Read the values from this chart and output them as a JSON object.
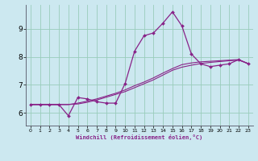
{
  "xlabel": "Windchill (Refroidissement éolien,°C)",
  "ylabel": "",
  "background_color": "#cce8f0",
  "grid_color": "#99ccbb",
  "line_color": "#882288",
  "spine_color": "#555566",
  "x_ticks": [
    0,
    1,
    2,
    3,
    4,
    5,
    6,
    7,
    8,
    9,
    10,
    11,
    12,
    13,
    14,
    15,
    16,
    17,
    18,
    19,
    20,
    21,
    22,
    23
  ],
  "y_ticks": [
    6,
    7,
    8,
    9
  ],
  "ylim": [
    5.55,
    9.85
  ],
  "xlim": [
    -0.5,
    23.5
  ],
  "line1_x": [
    0,
    1,
    2,
    3,
    4,
    5,
    6,
    7,
    8,
    9,
    10,
    11,
    12,
    13,
    14,
    15,
    16,
    17,
    18,
    19,
    20,
    21,
    22,
    23
  ],
  "line1_y": [
    6.3,
    6.3,
    6.3,
    6.3,
    5.9,
    6.55,
    6.5,
    6.4,
    6.35,
    6.35,
    7.05,
    8.2,
    8.75,
    8.85,
    9.2,
    9.6,
    9.1,
    8.1,
    7.75,
    7.65,
    7.7,
    7.75,
    7.9,
    7.75
  ],
  "line2_x": [
    0,
    1,
    2,
    3,
    4,
    5,
    6,
    7,
    8,
    9,
    10,
    11,
    12,
    13,
    14,
    15,
    16,
    17,
    18,
    19,
    20,
    21,
    22,
    23
  ],
  "line2_y": [
    6.3,
    6.3,
    6.3,
    6.3,
    6.3,
    6.35,
    6.42,
    6.5,
    6.6,
    6.7,
    6.82,
    6.97,
    7.1,
    7.25,
    7.42,
    7.58,
    7.72,
    7.78,
    7.82,
    7.84,
    7.86,
    7.88,
    7.9,
    7.76
  ],
  "line3_x": [
    0,
    1,
    2,
    3,
    4,
    5,
    6,
    7,
    8,
    9,
    10,
    11,
    12,
    13,
    14,
    15,
    16,
    17,
    18,
    19,
    20,
    21,
    22,
    23
  ],
  "line3_y": [
    6.3,
    6.3,
    6.3,
    6.3,
    6.3,
    6.32,
    6.38,
    6.46,
    6.56,
    6.66,
    6.76,
    6.9,
    7.04,
    7.18,
    7.35,
    7.52,
    7.63,
    7.7,
    7.76,
    7.8,
    7.83,
    7.86,
    7.88,
    7.76
  ]
}
